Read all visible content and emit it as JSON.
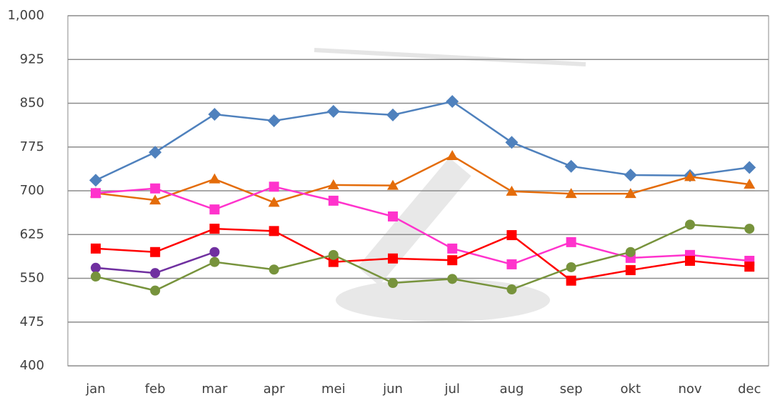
{
  "chart_data": {
    "type": "line",
    "categories": [
      "jan",
      "feb",
      "mar",
      "apr",
      "mei",
      "jun",
      "jul",
      "aug",
      "sep",
      "okt",
      "nov",
      "dec"
    ],
    "series": [
      {
        "color": "#4f81bd",
        "marker": "diamond",
        "values": [
          718,
          766,
          831,
          820,
          836,
          830,
          853,
          783,
          742,
          727,
          726,
          740
        ]
      },
      {
        "color": "#e46c0a",
        "marker": "triangle",
        "values": [
          696,
          684,
          720,
          680,
          710,
          709,
          760,
          699,
          695,
          695,
          724,
          711
        ]
      },
      {
        "color": "#ff33cc",
        "marker": "square",
        "values": [
          696,
          704,
          668,
          707,
          683,
          656,
          601,
          574,
          612,
          585,
          590,
          580
        ]
      },
      {
        "color": "#ff0000",
        "marker": "square",
        "values": [
          601,
          595,
          635,
          631,
          578,
          584,
          581,
          624,
          546,
          564,
          580,
          570
        ]
      },
      {
        "color": "#7030a0",
        "marker": "circle",
        "values": [
          568,
          559,
          595,
          null,
          null,
          null,
          null,
          null,
          null,
          null,
          null,
          null
        ]
      },
      {
        "color": "#77933c",
        "marker": "circle",
        "values": [
          553,
          529,
          578,
          565,
          590,
          542,
          549,
          531,
          569,
          595,
          642,
          635
        ]
      }
    ],
    "ylim": [
      400,
      1000
    ],
    "yticks": [
      400,
      475,
      550,
      625,
      700,
      775,
      850,
      925,
      {
        "value": 1000,
        "label": "1,000"
      }
    ],
    "grid": true
  }
}
